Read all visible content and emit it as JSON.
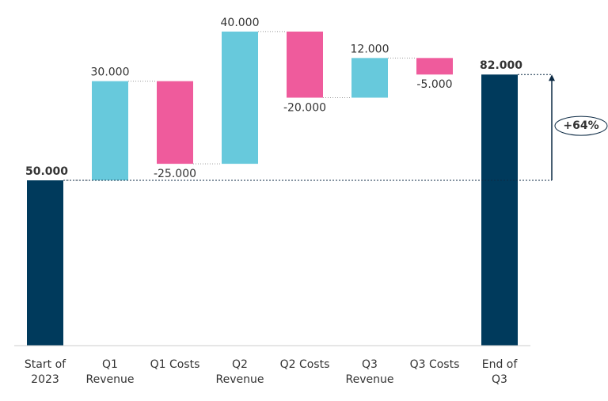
{
  "chart_data": {
    "type": "waterfall",
    "categories": [
      "Start of\n2023",
      "Q1\nRevenue",
      "Q1 Costs",
      "Q2\nRevenue",
      "Q2 Costs",
      "Q3\nRevenue",
      "Q3 Costs",
      "End of\nQ3"
    ],
    "values": [
      50000,
      30000,
      -25000,
      40000,
      -20000,
      12000,
      -5000,
      82000
    ],
    "value_labels": [
      "50.000",
      "30.000",
      "-25.000",
      "40.000",
      "-20.000",
      "12.000",
      "-5.000",
      "82.000"
    ],
    "colors": [
      "#003a5c",
      "#67c9dc",
      "#ef5b9c",
      "#67c9dc",
      "#ef5b9c",
      "#67c9dc",
      "#ef5b9c",
      "#003a5c"
    ],
    "ylim": [
      0,
      100000
    ],
    "annotation": "+64%"
  }
}
